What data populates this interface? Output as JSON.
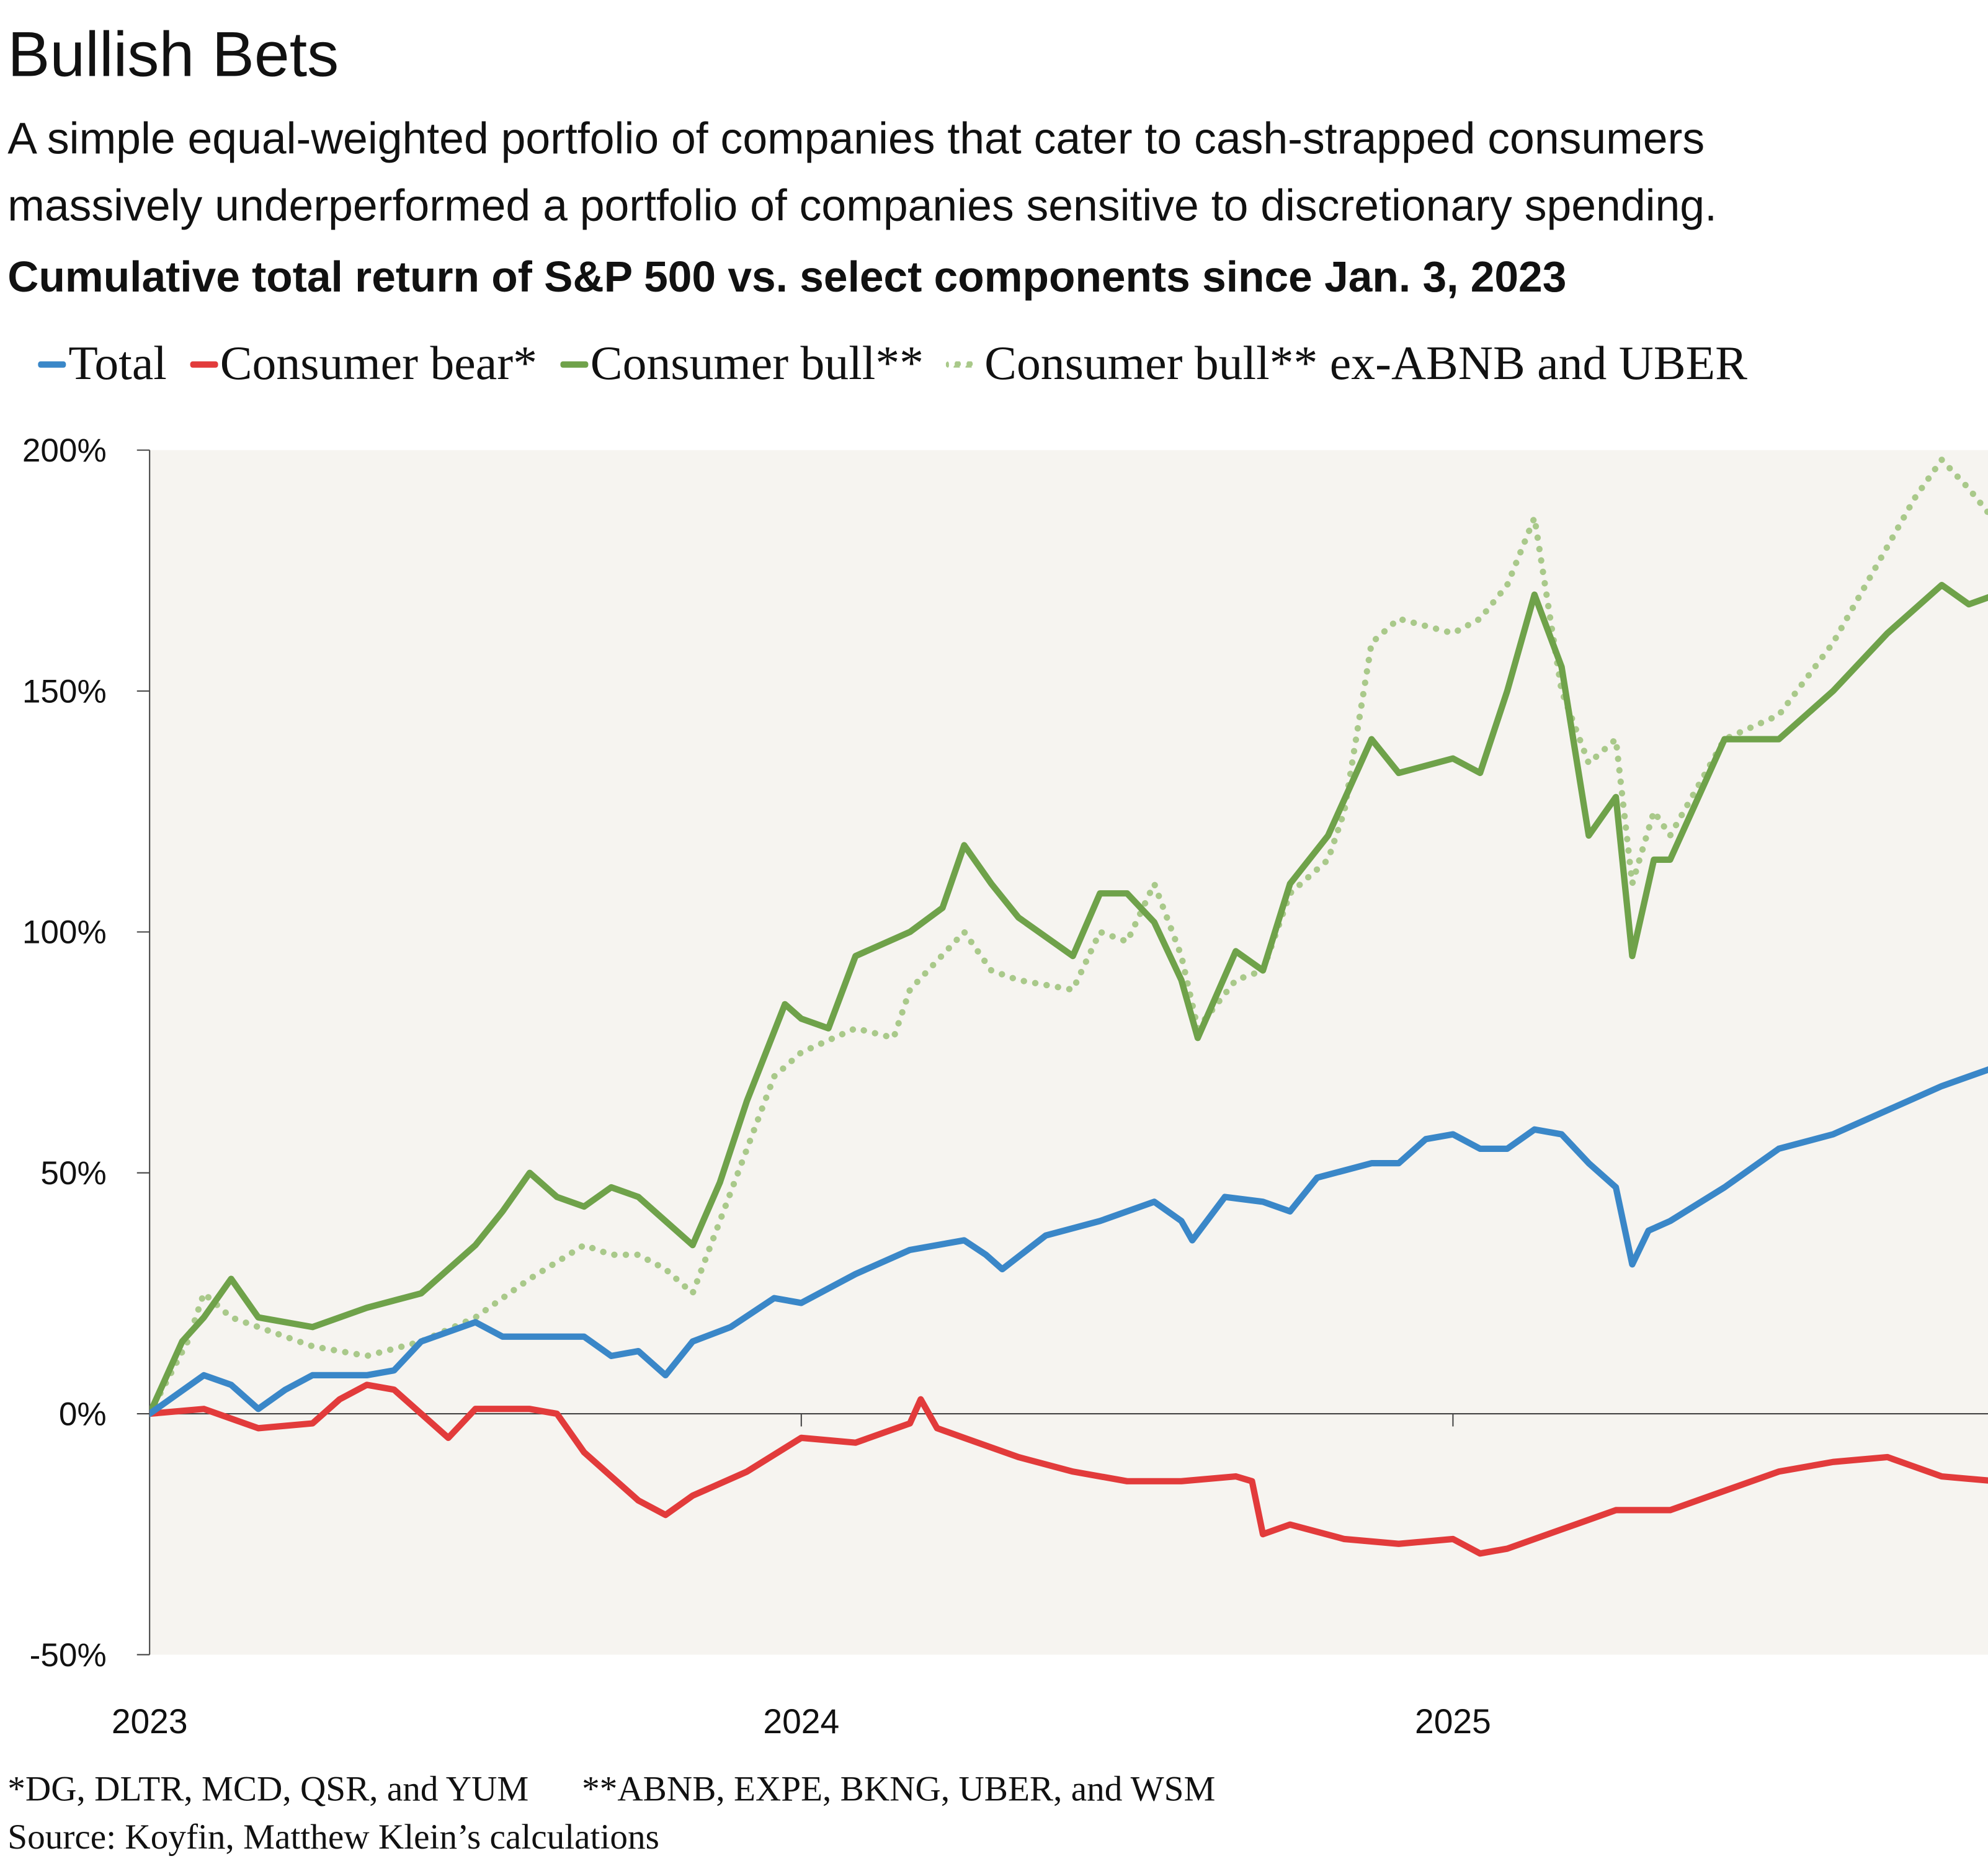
{
  "title": "Bullish Bets",
  "subtitle_lines": [
    "A simple equal-weighted portfolio of companies that cater to cash-strapped consumers",
    "massively underperformed a portfolio of companies sensitive to discretionary spending."
  ],
  "footnotes": [
    "*DG, DLTR, MCD, QSR, and YUM      **ABNB, EXPE, BKNG, UBER, and WSM",
    "Source: Koyfin, Matthew Klein’s calculations"
  ],
  "chart_data": {
    "type": "line",
    "title": "Cumulative total return of S&P 500 vs. select components since Jan. 3, 2023",
    "xlabel": "",
    "ylabel": "",
    "x_unit": "months since Jan 2023",
    "xlim": [
      0,
      33.85
    ],
    "ylim": [
      -50,
      200
    ],
    "yticks": [
      200,
      150,
      100,
      50,
      0,
      -50
    ],
    "ytick_labels": [
      "200%",
      "150%",
      "100%",
      "50%",
      "0%",
      "-50%"
    ],
    "xticks": [
      0,
      12,
      24
    ],
    "xtick_labels": [
      "2023",
      "2024",
      "2025"
    ],
    "legend_position": "top",
    "series": [
      {
        "name": "Total",
        "color": "#3a87c8",
        "style": "solid",
        "points": [
          [
            0,
            0
          ],
          [
            0.5,
            4
          ],
          [
            1,
            8
          ],
          [
            1.5,
            6
          ],
          [
            2,
            1
          ],
          [
            2.5,
            5
          ],
          [
            3,
            8
          ],
          [
            4,
            8
          ],
          [
            4.5,
            9
          ],
          [
            5,
            15
          ],
          [
            6,
            19
          ],
          [
            6.5,
            16
          ],
          [
            7,
            16
          ],
          [
            8,
            16
          ],
          [
            8.5,
            12
          ],
          [
            9,
            13
          ],
          [
            9.5,
            8
          ],
          [
            10,
            15
          ],
          [
            10.7,
            18
          ],
          [
            11.5,
            24
          ],
          [
            12,
            23
          ],
          [
            13,
            29
          ],
          [
            14,
            34
          ],
          [
            15,
            36
          ],
          [
            15.4,
            33
          ],
          [
            15.7,
            30
          ],
          [
            16.5,
            37
          ],
          [
            17.5,
            40
          ],
          [
            18.5,
            44
          ],
          [
            19,
            40
          ],
          [
            19.2,
            36
          ],
          [
            19.8,
            45
          ],
          [
            20.5,
            44
          ],
          [
            21,
            42
          ],
          [
            21.5,
            49
          ],
          [
            22.5,
            52
          ],
          [
            23,
            52
          ],
          [
            23.5,
            57
          ],
          [
            24,
            58
          ],
          [
            24.5,
            55
          ],
          [
            25,
            55
          ],
          [
            25.5,
            59
          ],
          [
            26,
            58
          ],
          [
            26.5,
            52
          ],
          [
            27,
            47
          ],
          [
            27.3,
            31
          ],
          [
            27.6,
            38
          ],
          [
            28,
            40
          ],
          [
            29,
            47
          ],
          [
            30,
            55
          ],
          [
            31,
            58
          ],
          [
            32,
            63
          ],
          [
            33,
            68
          ],
          [
            34,
            72
          ],
          [
            34.6,
            74
          ],
          [
            35,
            80
          ]
        ]
      },
      {
        "name": "Consumer bear*",
        "color": "#e23b3b",
        "style": "solid",
        "points": [
          [
            0,
            0
          ],
          [
            1,
            1
          ],
          [
            2,
            -3
          ],
          [
            3,
            -2
          ],
          [
            3.5,
            3
          ],
          [
            4,
            6
          ],
          [
            4.5,
            5
          ],
          [
            5,
            0
          ],
          [
            5.5,
            -5
          ],
          [
            6,
            1
          ],
          [
            7,
            1
          ],
          [
            7.5,
            0
          ],
          [
            8,
            -8
          ],
          [
            8.5,
            -13
          ],
          [
            9,
            -18
          ],
          [
            9.5,
            -21
          ],
          [
            10,
            -17
          ],
          [
            11,
            -12
          ],
          [
            12,
            -5
          ],
          [
            13,
            -6
          ],
          [
            14,
            -2
          ],
          [
            14.2,
            3
          ],
          [
            14.5,
            -3
          ],
          [
            15,
            -5
          ],
          [
            16,
            -9
          ],
          [
            17,
            -12
          ],
          [
            18,
            -14
          ],
          [
            19,
            -14
          ],
          [
            20,
            -13
          ],
          [
            20.3,
            -14
          ],
          [
            20.5,
            -25
          ],
          [
            21,
            -23
          ],
          [
            22,
            -26
          ],
          [
            23,
            -27
          ],
          [
            24,
            -26
          ],
          [
            24.5,
            -29
          ],
          [
            25,
            -28
          ],
          [
            26,
            -24
          ],
          [
            27,
            -20
          ],
          [
            28,
            -20
          ],
          [
            29,
            -16
          ],
          [
            30,
            -12
          ],
          [
            31,
            -10
          ],
          [
            32,
            -9
          ],
          [
            33,
            -13
          ],
          [
            34,
            -14
          ],
          [
            35,
            -11
          ]
        ]
      },
      {
        "name": "Consumer bull**",
        "color": "#6fa24a",
        "style": "solid",
        "points": [
          [
            0,
            0
          ],
          [
            0.6,
            15
          ],
          [
            1,
            20
          ],
          [
            1.5,
            28
          ],
          [
            2,
            20
          ],
          [
            3,
            18
          ],
          [
            4,
            22
          ],
          [
            5,
            25
          ],
          [
            6,
            35
          ],
          [
            6.5,
            42
          ],
          [
            7,
            50
          ],
          [
            7.5,
            45
          ],
          [
            8,
            43
          ],
          [
            8.5,
            47
          ],
          [
            9,
            45
          ],
          [
            9.5,
            40
          ],
          [
            10,
            35
          ],
          [
            10.5,
            48
          ],
          [
            11,
            65
          ],
          [
            11.7,
            85
          ],
          [
            12,
            82
          ],
          [
            12.5,
            80
          ],
          [
            13,
            95
          ],
          [
            14,
            100
          ],
          [
            14.6,
            105
          ],
          [
            15,
            118
          ],
          [
            15.5,
            110
          ],
          [
            16,
            103
          ],
          [
            17,
            95
          ],
          [
            17.5,
            108
          ],
          [
            18,
            108
          ],
          [
            18.5,
            102
          ],
          [
            19,
            90
          ],
          [
            19.3,
            78
          ],
          [
            20,
            96
          ],
          [
            20.5,
            92
          ],
          [
            21,
            110
          ],
          [
            21.7,
            120
          ],
          [
            22.5,
            140
          ],
          [
            23,
            133
          ],
          [
            24,
            136
          ],
          [
            24.5,
            133
          ],
          [
            25,
            150
          ],
          [
            25.5,
            170
          ],
          [
            26,
            155
          ],
          [
            26.5,
            120
          ],
          [
            27,
            128
          ],
          [
            27.3,
            95
          ],
          [
            27.7,
            115
          ],
          [
            28,
            115
          ],
          [
            29,
            140
          ],
          [
            30,
            140
          ],
          [
            31,
            150
          ],
          [
            32,
            162
          ],
          [
            33,
            172
          ],
          [
            33.5,
            168
          ],
          [
            34,
            170
          ],
          [
            34.5,
            165
          ],
          [
            35,
            168
          ]
        ]
      },
      {
        "name": "Consumer bull** ex-ABNB and UBER",
        "color": "#a9c98a",
        "style": "dotted",
        "points": [
          [
            0,
            0
          ],
          [
            0.7,
            15
          ],
          [
            1,
            25
          ],
          [
            1.5,
            20
          ],
          [
            2,
            18
          ],
          [
            3,
            14
          ],
          [
            4,
            12
          ],
          [
            5,
            15
          ],
          [
            6,
            20
          ],
          [
            6.5,
            24
          ],
          [
            7,
            28
          ],
          [
            8,
            35
          ],
          [
            8.5,
            33
          ],
          [
            9,
            33
          ],
          [
            9.5,
            30
          ],
          [
            10,
            25
          ],
          [
            10.5,
            40
          ],
          [
            11,
            55
          ],
          [
            11.5,
            70
          ],
          [
            12,
            75
          ],
          [
            13,
            80
          ],
          [
            13.7,
            78
          ],
          [
            14,
            88
          ],
          [
            15,
            100
          ],
          [
            15.5,
            92
          ],
          [
            16,
            90
          ],
          [
            17,
            88
          ],
          [
            17.5,
            100
          ],
          [
            18,
            98
          ],
          [
            18.5,
            110
          ],
          [
            19,
            95
          ],
          [
            19.3,
            80
          ],
          [
            20,
            90
          ],
          [
            20.5,
            92
          ],
          [
            21,
            108
          ],
          [
            21.7,
            115
          ],
          [
            22,
            125
          ],
          [
            22.5,
            160
          ],
          [
            23,
            165
          ],
          [
            24,
            162
          ],
          [
            24.5,
            165
          ],
          [
            25,
            172
          ],
          [
            25.5,
            186
          ],
          [
            26,
            150
          ],
          [
            26.5,
            135
          ],
          [
            27,
            140
          ],
          [
            27.3,
            110
          ],
          [
            27.7,
            125
          ],
          [
            28,
            120
          ],
          [
            29,
            140
          ],
          [
            30,
            145
          ],
          [
            31,
            160
          ],
          [
            32,
            180
          ],
          [
            32.5,
            190
          ],
          [
            33,
            198
          ],
          [
            33.5,
            192
          ],
          [
            34,
            185
          ],
          [
            34.5,
            182
          ],
          [
            35,
            190
          ]
        ]
      }
    ]
  }
}
